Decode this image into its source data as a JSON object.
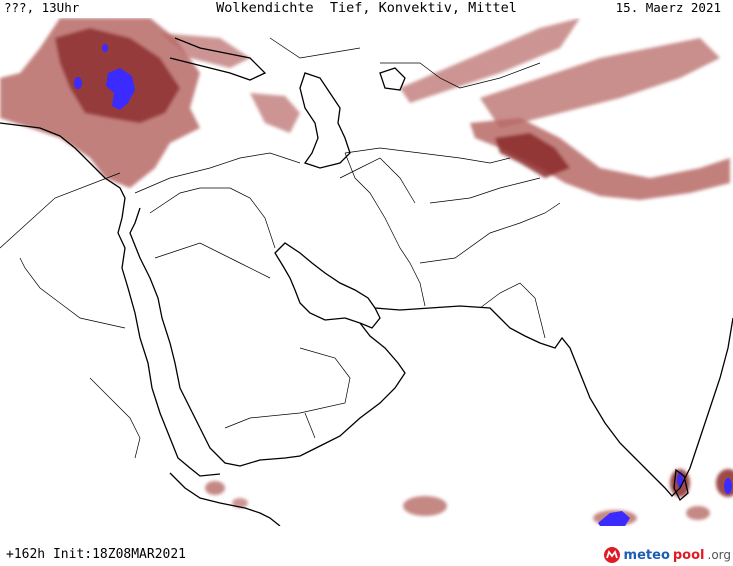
{
  "header": {
    "left": "???, 13Uhr",
    "center": "Wolkendichte  Tief, Konvektiv, Mittel",
    "right": "15. Maerz 2021"
  },
  "footer": {
    "run": "+162h Init:18Z08MAR2021",
    "logo_meteo": "meteo",
    "logo_pool": "pool",
    "logo_org": ".org"
  },
  "colors": {
    "cloud_low": "#b76a66",
    "cloud_mid": "#8c2a2a",
    "cloud_high": "#3b2bff",
    "coast": "#000000",
    "border": "#000000"
  },
  "icons": {
    "logo": "meteopool-logo-icon"
  }
}
